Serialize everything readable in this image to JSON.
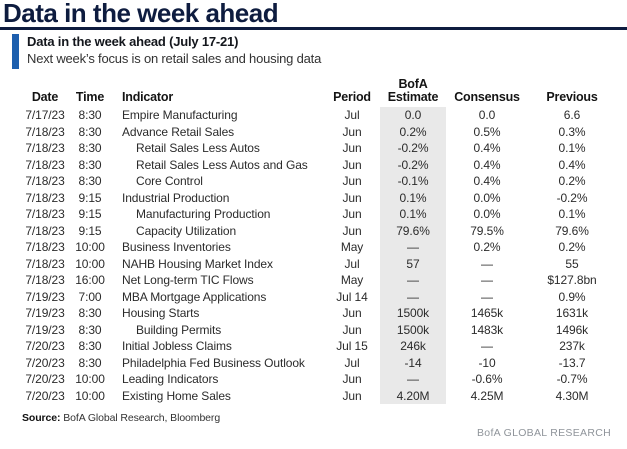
{
  "header": {
    "title": "Data in the week ahead",
    "box_title": "Data in the week ahead (July 17-21)",
    "subtitle": "Next week’s focus is on retail sales and housing data"
  },
  "table": {
    "columns": {
      "date": "Date",
      "time": "Time",
      "indicator": "Indicator",
      "period": "Period",
      "estimate_line1": "BofA",
      "estimate_line2": "Estimate",
      "consensus": "Consensus",
      "previous": "Previous"
    },
    "rows": [
      {
        "date": "7/17/23",
        "time": "8:30",
        "indicator": "Empire Manufacturing",
        "period": "Jul",
        "estimate": "0.0",
        "consensus": "0.0",
        "previous": "6.6",
        "indent": false
      },
      {
        "date": "7/18/23",
        "time": "8:30",
        "indicator": "Advance Retail Sales",
        "period": "Jun",
        "estimate": "0.2%",
        "consensus": "0.5%",
        "previous": "0.3%",
        "indent": false
      },
      {
        "date": "7/18/23",
        "time": "8:30",
        "indicator": "Retail Sales Less Autos",
        "period": "Jun",
        "estimate": "-0.2%",
        "consensus": "0.4%",
        "previous": "0.1%",
        "indent": true
      },
      {
        "date": "7/18/23",
        "time": "8:30",
        "indicator": "Retail Sales Less Autos and Gas",
        "period": "Jun",
        "estimate": "-0.2%",
        "consensus": "0.4%",
        "previous": "0.4%",
        "indent": true
      },
      {
        "date": "7/18/23",
        "time": "8:30",
        "indicator": "Core Control",
        "period": "Jun",
        "estimate": "-0.1%",
        "consensus": "0.4%",
        "previous": "0.2%",
        "indent": true
      },
      {
        "date": "7/18/23",
        "time": "9:15",
        "indicator": "Industrial Production",
        "period": "Jun",
        "estimate": "0.1%",
        "consensus": "0.0%",
        "previous": "-0.2%",
        "indent": false
      },
      {
        "date": "7/18/23",
        "time": "9:15",
        "indicator": "Manufacturing Production",
        "period": "Jun",
        "estimate": "0.1%",
        "consensus": "0.0%",
        "previous": "0.1%",
        "indent": true
      },
      {
        "date": "7/18/23",
        "time": "9:15",
        "indicator": "Capacity Utilization",
        "period": "Jun",
        "estimate": "79.6%",
        "consensus": "79.5%",
        "previous": "79.6%",
        "indent": true
      },
      {
        "date": "7/18/23",
        "time": "10:00",
        "indicator": "Business Inventories",
        "period": "May",
        "estimate": "—",
        "consensus": "0.2%",
        "previous": "0.2%",
        "indent": false
      },
      {
        "date": "7/18/23",
        "time": "10:00",
        "indicator": "NAHB Housing Market Index",
        "period": "Jul",
        "estimate": "57",
        "consensus": "—",
        "previous": "55",
        "indent": false
      },
      {
        "date": "7/18/23",
        "time": "16:00",
        "indicator": "Net Long-term TIC Flows",
        "period": "May",
        "estimate": "—",
        "consensus": "—",
        "previous": "$127.8bn",
        "indent": false
      },
      {
        "date": "7/19/23",
        "time": "7:00",
        "indicator": "MBA Mortgage Applications",
        "period": "Jul 14",
        "estimate": "—",
        "consensus": "—",
        "previous": "0.9%",
        "indent": false
      },
      {
        "date": "7/19/23",
        "time": "8:30",
        "indicator": "Housing Starts",
        "period": "Jun",
        "estimate": "1500k",
        "consensus": "1465k",
        "previous": "1631k",
        "indent": false
      },
      {
        "date": "7/19/23",
        "time": "8:30",
        "indicator": "Building Permits",
        "period": "Jun",
        "estimate": "1500k",
        "consensus": "1483k",
        "previous": "1496k",
        "indent": true
      },
      {
        "date": "7/20/23",
        "time": "8:30",
        "indicator": "Initial Jobless Claims",
        "period": "Jul 15",
        "estimate": "246k",
        "consensus": "—",
        "previous": "237k",
        "indent": false
      },
      {
        "date": "7/20/23",
        "time": "8:30",
        "indicator": "Philadelphia Fed Business Outlook",
        "period": "Jul",
        "estimate": "-14",
        "consensus": "-10",
        "previous": "-13.7",
        "indent": false
      },
      {
        "date": "7/20/23",
        "time": "10:00",
        "indicator": "Leading Indicators",
        "period": "Jun",
        "estimate": "—",
        "consensus": "-0.6%",
        "previous": "-0.7%",
        "indent": false
      },
      {
        "date": "7/20/23",
        "time": "10:00",
        "indicator": "Existing Home Sales",
        "period": "Jun",
        "estimate": "4.20M",
        "consensus": "4.25M",
        "previous": "4.30M",
        "indent": false
      }
    ]
  },
  "footer": {
    "source_label": "Source:",
    "source_text": "BofA Global Research, Bloomberg",
    "brand": "BofA GLOBAL RESEARCH"
  },
  "colors": {
    "title_navy": "#0e1c3f",
    "accent_blue": "#1d5fae",
    "estimate_shade": "#e9e9e9",
    "brand_gray": "#8f949a"
  }
}
